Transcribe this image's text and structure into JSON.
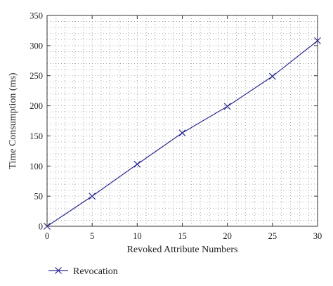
{
  "chart_data": {
    "type": "line",
    "title": "",
    "xlabel": "Revoked Attribute Numbers",
    "ylabel": "Time Consumption (ms)",
    "xlim": [
      0,
      30
    ],
    "ylim": [
      0,
      350
    ],
    "xticks": [
      0,
      5,
      10,
      15,
      20,
      25,
      30
    ],
    "yticks": [
      0,
      50,
      100,
      150,
      200,
      250,
      300,
      350
    ],
    "grid": "dotted",
    "legend_position": "bottom-left",
    "series": [
      {
        "name": "Revocation",
        "color": "#2b2b8f",
        "marker": "x",
        "x": [
          0,
          5,
          10,
          15,
          20,
          25,
          30
        ],
        "y": [
          0,
          50,
          103,
          155,
          199,
          249,
          308
        ]
      }
    ]
  }
}
